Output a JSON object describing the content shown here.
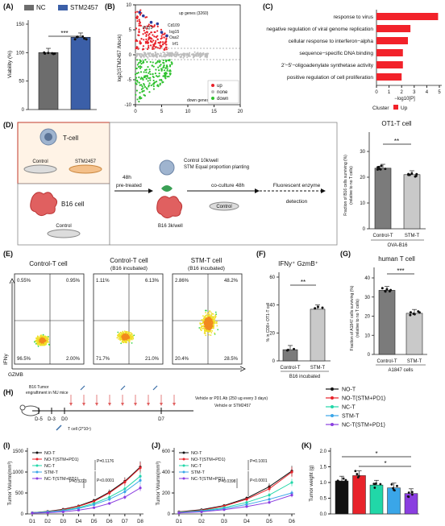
{
  "labels": {
    "A": "(A)",
    "B": "(B)",
    "C": "(C)",
    "D": "(D)",
    "E": "(E)",
    "F": "(F)",
    "G": "(G)",
    "H": "(H)",
    "I": "(I)",
    "J": "(J)",
    "K": "(K)"
  },
  "colors": {
    "nc": "#6d6d6d",
    "stm": "#3b5fa8",
    "up": "#e8222a",
    "down": "#2fc12f",
    "none": "#bdbdbd",
    "red_bar": "#f2222a",
    "control_t": "#7b7b7b",
    "stm_t": "#c9c9c9",
    "blue_text": "#2a3c9c",
    "red_text": "#d62020"
  },
  "panelA": {
    "legend": [
      "NC",
      "STM2457"
    ],
    "ylabel": "Viability (%)",
    "sig": "***",
    "chart_data": {
      "type": "bar",
      "categories": [
        "NC",
        "STM2457"
      ],
      "values": [
        100,
        127
      ],
      "ylim": [
        0,
        150
      ],
      "yticks": [
        "0",
        "50",
        "100",
        "150"
      ],
      "ylabel": "Viability (%)"
    }
  },
  "panelB": {
    "ylabel": "log2(STM2457 /Mock)",
    "up_genes": "up genes (3260)",
    "down_genes": "down genes (3920)",
    "gene_labels": [
      "Ifi-Q3",
      "Cd109",
      "Isg15",
      "Oas2",
      "Irf1"
    ],
    "legend": [
      "up",
      "none",
      "down"
    ],
    "chart_data": {
      "type": "scatter",
      "xlim": [
        0,
        20
      ],
      "xticks": [
        "0",
        "5",
        "10",
        "15",
        "20"
      ],
      "ylim": [
        -10,
        10
      ],
      "yticks": [
        "-10",
        "-5",
        "0",
        "5",
        "10"
      ]
    }
  },
  "panelC": {
    "xlabel": "−log10[P]",
    "legend_title": "Cluster",
    "legend_item": "Up",
    "chart_data": {
      "type": "bar",
      "orientation": "horizontal",
      "categories": [
        "response to virus",
        "negative regulation of viral genome replication",
        "cellular response to interferon−alpha",
        "sequence−specific DNA binding",
        "2'−5'−oligoadenylate synthetase activity",
        "positive regulation of cell proliferation"
      ],
      "values": [
        4.9,
        2.7,
        2.5,
        2.1,
        2.1,
        2.0
      ],
      "xlim": [
        0,
        5
      ],
      "xticks": [
        "0",
        "1",
        "2",
        "3",
        "4",
        "5"
      ],
      "xlabel": "−log10[P]"
    }
  },
  "panelD": {
    "tcell": "T-cell",
    "control": "Control",
    "stm2457": "STM2457",
    "b16cell": "B16 cell",
    "control_b16": "Control",
    "hours48": "48h",
    "pretreated": "pre-treated",
    "control_well": "Control 10k/well",
    "stm_planting": "STM Equal proportion planting",
    "b16_well": "B16 3k/well",
    "coculture": "co-culture  48h",
    "dish_control": "Control",
    "fluor1": "Fluorescent enzyme",
    "fluor2": "detection",
    "chart_title": "OT1-T cell",
    "ylabel1": "Fraction of B16 cells surviving  (%)",
    "ylabel2": "(relative to no T  cells)",
    "sig": "**",
    "xlabels": [
      "Control-T",
      "STM-T"
    ],
    "group": "OVA-B16",
    "chart_data": {
      "type": "bar",
      "categories": [
        "Control-T",
        "STM-T"
      ],
      "values": [
        23.5,
        21
      ],
      "ylim": [
        0,
        30
      ],
      "yticks": [
        "0",
        "10",
        "20",
        "30"
      ]
    }
  },
  "panelE": {
    "plots": [
      {
        "title": "Control-T cell",
        "subtitle": "",
        "q": [
          "0.55%",
          "0.95%",
          "96.5%",
          "2.00%"
        ]
      },
      {
        "title": "Control-T cell",
        "subtitle": "(B16 incubated)",
        "q": [
          "1.11%",
          "6.13%",
          "71.7%",
          "21.0%"
        ]
      },
      {
        "title": "STM-T cell",
        "subtitle": "(B16 incubated)",
        "q": [
          "2.86%",
          "48.2%",
          "20.4%",
          "28.5%"
        ]
      }
    ],
    "ylabel": "IFNy",
    "xlabel": "GZMB"
  },
  "panelF": {
    "title": "IFNy⁺ GzmB⁺",
    "ylabel": "% in CD8+ OT1-T cell",
    "sig": "**",
    "xlabels": [
      "Control-T",
      "STM-T"
    ],
    "group": "B16 incubated",
    "chart_data": {
      "type": "bar",
      "categories": [
        "Control-T",
        "STM-T"
      ],
      "values": [
        8,
        37
      ],
      "ylim": [
        0,
        60
      ],
      "yticks": [
        "0",
        "20",
        "40",
        "60"
      ]
    }
  },
  "panelG": {
    "title": "human T cell",
    "ylabel1": "Fraction of A1847 cells surviving  (%)",
    "ylabel2": "(relative to no T  cells)",
    "sig": "***",
    "xlabels": [
      "Control-T",
      "STM-T"
    ],
    "group": "A1847 cells",
    "chart_data": {
      "type": "bar",
      "categories": [
        "Control-T",
        "STM-T"
      ],
      "values": [
        33.5,
        21.5
      ],
      "ylim": [
        0,
        40
      ],
      "yticks": [
        "0",
        "10",
        "20",
        "30",
        "40"
      ]
    }
  },
  "panelH": {
    "engraft1": "B16 Tumor",
    "engraft2": "engraftment in NU mice",
    "days": [
      "D-5",
      "D-3",
      "D0",
      "D7"
    ],
    "tcell": "T cell (2*10⁶)",
    "treat1": "Vehicle or PD1 Ab (250 ug every 3 days)",
    "treat2": "Vehicle or STM2457",
    "legend": [
      "NO-T",
      "NO-T(STM+PD1)",
      "NC-T",
      "STM-T",
      "NC-T(STM+PD1)"
    ]
  },
  "series_colors": [
    "#111111",
    "#e8222a",
    "#21d7a8",
    "#3aa6e8",
    "#8a3ee0"
  ],
  "panelI": {
    "ylabel": "Tumor Volumn(mm³)",
    "pvals": [
      "P=0.1176",
      "P=0.3223",
      "P<0.0001"
    ],
    "chart_data": {
      "type": "line",
      "x": [
        "D1",
        "D2",
        "D3",
        "D4",
        "D5",
        "D6",
        "D7",
        "D8"
      ],
      "ylim": [
        0,
        1500
      ],
      "yticks": [
        "0",
        "500",
        "1000",
        "1500"
      ],
      "series": [
        {
          "name": "NO-T",
          "values": [
            30,
            60,
            110,
            190,
            320,
            520,
            780,
            1120
          ]
        },
        {
          "name": "NO-T(STM+PD1)",
          "values": [
            30,
            55,
            100,
            180,
            300,
            500,
            760,
            1100
          ]
        },
        {
          "name": "NC-T",
          "values": [
            28,
            50,
            85,
            150,
            250,
            400,
            600,
            900
          ]
        },
        {
          "name": "STM-T",
          "values": [
            25,
            45,
            75,
            130,
            220,
            350,
            530,
            800
          ]
        },
        {
          "name": "NC-T(STM+PD1)",
          "values": [
            20,
            30,
            50,
            90,
            150,
            250,
            400,
            620
          ]
        }
      ]
    }
  },
  "panelJ": {
    "ylabel": "Tumor Volumn(mm³)",
    "pvals": [
      "P=0.1001",
      "P=0.0398",
      "P<0.0001"
    ],
    "chart_data": {
      "type": "line",
      "x": [
        "D1",
        "D2",
        "D3",
        "D4",
        "D5",
        "D6"
      ],
      "ylim": [
        0,
        600
      ],
      "yticks": [
        "0",
        "200",
        "400",
        "600"
      ],
      "series": [
        {
          "name": "NO-T",
          "values": [
            20,
            40,
            80,
            150,
            260,
            410
          ]
        },
        {
          "name": "NO-T(STM+PD1)",
          "values": [
            18,
            35,
            75,
            140,
            240,
            400
          ]
        },
        {
          "name": "NC-T",
          "values": [
            15,
            30,
            60,
            110,
            180,
            300
          ]
        },
        {
          "name": "STM-T",
          "values": [
            12,
            25,
            50,
            90,
            140,
            200
          ]
        },
        {
          "name": "NC-T(STM+PD1)",
          "values": [
            10,
            20,
            40,
            70,
            110,
            180
          ]
        }
      ]
    }
  },
  "panelK": {
    "ylabel": "Tumor weight (g)",
    "sig": [
      "*",
      "*"
    ],
    "chart_data": {
      "type": "bar",
      "categories": [
        "NO-T",
        "NO-T(STM+PD1)",
        "NC-T",
        "STM-T",
        "NC-T(STM+PD1)"
      ],
      "values": [
        1.05,
        1.22,
        0.92,
        0.83,
        0.65
      ],
      "ylim": [
        0,
        2.0
      ],
      "yticks": [
        "0.0",
        "0.5",
        "1.0",
        "1.5",
        "2.0"
      ]
    }
  }
}
